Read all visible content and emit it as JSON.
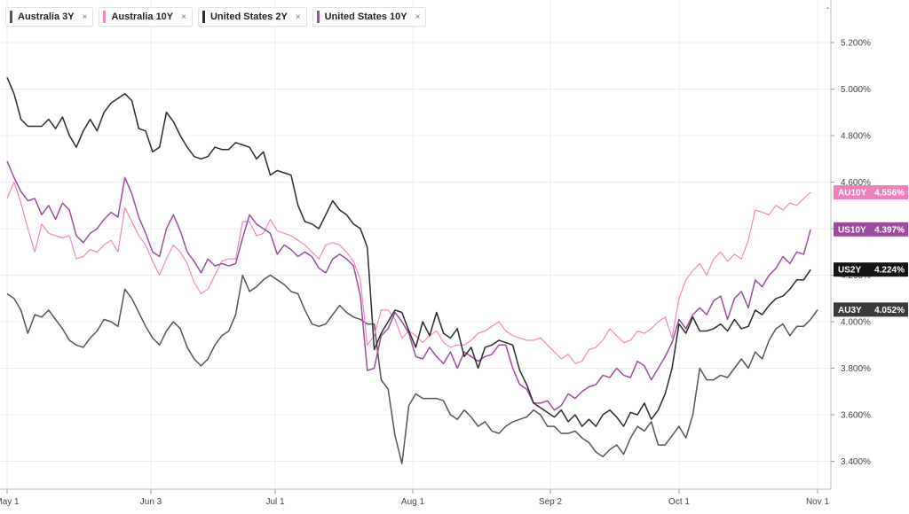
{
  "chart_data": {
    "type": "line",
    "x_ticks": [
      "May 1",
      "Jun 3",
      "Jul 1",
      "Aug 1",
      "Sep 2",
      "Oct 1",
      "Nov 1"
    ],
    "y_ticks": [
      "3.400%",
      "3.600%",
      "3.800%",
      "4.000%",
      "4.200%",
      "4.400%",
      "4.600%",
      "4.800%",
      "5.000%",
      "5.200%"
    ],
    "ylim": [
      3.28,
      5.36
    ],
    "grid": true,
    "legend_position": "top-left",
    "series": [
      {
        "name": "Australia 3Y",
        "tag": "AU3Y",
        "last_label": "4.052%",
        "color": "#555555",
        "flag_color": "#3a3a3a",
        "values": [
          4.12,
          4.1,
          4.05,
          3.95,
          4.03,
          4.02,
          4.05,
          4.01,
          3.97,
          3.92,
          3.9,
          3.89,
          3.93,
          3.96,
          4.01,
          4.0,
          3.98,
          4.14,
          4.1,
          4.04,
          3.98,
          3.93,
          3.9,
          3.96,
          4.0,
          3.97,
          3.89,
          3.84,
          3.81,
          3.84,
          3.9,
          3.94,
          3.96,
          4.03,
          4.2,
          4.13,
          4.15,
          4.18,
          4.2,
          4.18,
          4.16,
          4.13,
          4.12,
          4.05,
          3.99,
          3.98,
          3.99,
          4.03,
          4.07,
          4.04,
          4.02,
          4.01,
          3.99,
          3.99,
          3.75,
          3.71,
          3.51,
          3.39,
          3.64,
          3.69,
          3.67,
          3.67,
          3.67,
          3.66,
          3.6,
          3.58,
          3.62,
          3.59,
          3.55,
          3.57,
          3.53,
          3.52,
          3.55,
          3.57,
          3.58,
          3.59,
          3.62,
          3.6,
          3.55,
          3.55,
          3.52,
          3.52,
          3.53,
          3.5,
          3.48,
          3.44,
          3.42,
          3.45,
          3.47,
          3.43,
          3.5,
          3.55,
          3.53,
          3.57,
          3.47,
          3.47,
          3.51,
          3.55,
          3.5,
          3.6,
          3.8,
          3.75,
          3.75,
          3.77,
          3.76,
          3.8,
          3.84,
          3.8,
          3.87,
          3.84,
          3.92,
          3.97,
          3.99,
          3.94,
          3.98,
          3.98,
          4.01,
          4.052
        ]
      },
      {
        "name": "Australia 10Y",
        "tag": "AU10Y",
        "last_label": "4.556%",
        "color": "#f086c1",
        "flag_color": "#ef7fbd",
        "values": [
          4.53,
          4.6,
          4.51,
          4.4,
          4.3,
          4.42,
          4.38,
          4.37,
          4.36,
          4.37,
          4.27,
          4.28,
          4.31,
          4.3,
          4.33,
          4.35,
          4.3,
          4.49,
          4.43,
          4.37,
          4.33,
          4.26,
          4.2,
          4.27,
          4.33,
          4.3,
          4.25,
          4.17,
          4.12,
          4.14,
          4.2,
          4.26,
          4.27,
          4.27,
          4.43,
          4.43,
          4.37,
          4.38,
          4.44,
          4.39,
          4.38,
          4.37,
          4.35,
          4.33,
          4.3,
          4.27,
          4.33,
          4.34,
          4.33,
          4.3,
          4.26,
          4.18,
          3.9,
          3.94,
          4.05,
          4.05,
          4.01,
          3.93,
          3.96,
          3.94,
          3.91,
          3.94,
          3.96,
          3.91,
          3.89,
          3.9,
          3.9,
          3.92,
          3.95,
          3.96,
          3.98,
          4.0,
          3.96,
          3.94,
          3.93,
          3.92,
          3.92,
          3.93,
          3.9,
          3.87,
          3.84,
          3.86,
          3.82,
          3.83,
          3.88,
          3.89,
          3.92,
          3.97,
          3.94,
          3.91,
          3.92,
          3.96,
          3.95,
          3.97,
          4.0,
          4.02,
          3.93,
          4.1,
          4.18,
          4.22,
          4.25,
          4.2,
          4.27,
          4.3,
          4.26,
          4.29,
          4.27,
          4.35,
          4.48,
          4.47,
          4.46,
          4.5,
          4.48,
          4.51,
          4.5,
          4.53,
          4.556
        ]
      },
      {
        "name": "United States 2Y",
        "tag": "US2Y",
        "last_label": "4.224%",
        "color": "#2b2b2b",
        "flag_color": "#151515",
        "values": [
          5.05,
          4.98,
          4.87,
          4.84,
          4.84,
          4.84,
          4.87,
          4.83,
          4.88,
          4.8,
          4.75,
          4.82,
          4.87,
          4.82,
          4.9,
          4.94,
          4.96,
          4.98,
          4.95,
          4.83,
          4.82,
          4.73,
          4.75,
          4.9,
          4.86,
          4.8,
          4.75,
          4.71,
          4.7,
          4.71,
          4.75,
          4.74,
          4.74,
          4.77,
          4.76,
          4.75,
          4.7,
          4.73,
          4.63,
          4.65,
          4.64,
          4.63,
          4.5,
          4.43,
          4.42,
          4.4,
          4.46,
          4.52,
          4.48,
          4.46,
          4.42,
          4.4,
          4.32,
          3.88,
          3.95,
          4.0,
          4.05,
          4.04,
          3.96,
          3.89,
          4.0,
          3.94,
          4.04,
          3.95,
          3.93,
          3.97,
          3.85,
          3.89,
          3.8,
          3.89,
          3.9,
          3.92,
          3.91,
          3.9,
          3.79,
          3.73,
          3.65,
          3.63,
          3.61,
          3.59,
          3.62,
          3.57,
          3.6,
          3.55,
          3.58,
          3.55,
          3.6,
          3.62,
          3.59,
          3.55,
          3.61,
          3.6,
          3.65,
          3.58,
          3.62,
          3.69,
          3.8,
          3.99,
          3.95,
          4.02,
          3.96,
          3.96,
          3.97,
          3.99,
          3.96,
          4.01,
          3.97,
          3.98,
          4.05,
          4.03,
          4.07,
          4.1,
          4.11,
          4.14,
          4.18,
          4.18,
          4.224
        ]
      },
      {
        "name": "United States 10Y",
        "tag": "US10Y",
        "last_label": "4.397%",
        "color": "#9a4f9e",
        "flag_color": "#9c4aa0",
        "values": [
          4.69,
          4.62,
          4.56,
          4.52,
          4.53,
          4.46,
          4.5,
          4.44,
          4.51,
          4.48,
          4.37,
          4.34,
          4.38,
          4.4,
          4.44,
          4.47,
          4.45,
          4.62,
          4.55,
          4.45,
          4.38,
          4.3,
          4.28,
          4.4,
          4.46,
          4.39,
          4.3,
          4.26,
          4.21,
          4.27,
          4.24,
          4.25,
          4.24,
          4.25,
          4.36,
          4.46,
          4.42,
          4.4,
          4.38,
          4.29,
          4.33,
          4.31,
          4.28,
          4.3,
          4.28,
          4.23,
          4.21,
          4.27,
          4.29,
          4.27,
          4.24,
          4.11,
          3.79,
          3.8,
          3.94,
          3.97,
          4.04,
          4.0,
          3.95,
          3.85,
          3.84,
          3.89,
          3.85,
          3.82,
          3.87,
          3.8,
          3.87,
          3.85,
          3.83,
          3.85,
          3.86,
          3.9,
          3.9,
          3.8,
          3.73,
          3.71,
          3.65,
          3.65,
          3.66,
          3.62,
          3.64,
          3.69,
          3.67,
          3.7,
          3.72,
          3.73,
          3.77,
          3.76,
          3.8,
          3.77,
          3.76,
          3.83,
          3.81,
          3.75,
          3.8,
          3.85,
          3.91,
          4.01,
          3.97,
          4.03,
          4.06,
          4.03,
          4.09,
          4.11,
          4.01,
          4.1,
          4.13,
          4.06,
          4.18,
          4.15,
          4.2,
          4.23,
          4.28,
          4.25,
          4.3,
          4.29,
          4.397
        ]
      }
    ]
  },
  "scroll_marker": "-"
}
